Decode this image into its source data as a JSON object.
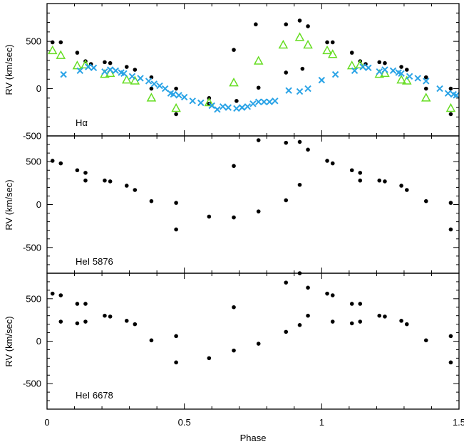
{
  "chart_data": {
    "type": "scatter",
    "xlabel": "Phase",
    "xlim": [
      0,
      1.5
    ],
    "x_ticks": [
      0,
      0.5,
      1,
      1.5
    ],
    "x_tick_labels": [
      "0",
      "0.5",
      "1",
      "1.5"
    ],
    "colors": {
      "black": "#000000",
      "green": "#66dd22",
      "blue": "#2aa3e6"
    },
    "panels": [
      {
        "label": "Hα",
        "ylabel": "RV (km/sec)",
        "ylim": [
          -500,
          900
        ],
        "y_ticks": [
          -500,
          0,
          500
        ],
        "y_tick_labels": [
          "-500",
          "0",
          "500"
        ],
        "series": [
          {
            "marker": "dot",
            "color": "#000000",
            "points": [
              [
                0.02,
                490
              ],
              [
                0.05,
                490
              ],
              [
                0.11,
                380
              ],
              [
                0.14,
                290
              ],
              [
                0.16,
                260
              ],
              [
                0.21,
                280
              ],
              [
                0.23,
                270
              ],
              [
                0.29,
                230
              ],
              [
                0.32,
                200
              ],
              [
                0.38,
                120
              ],
              [
                0.38,
                0
              ],
              [
                0.47,
                0
              ],
              [
                0.47,
                -270
              ],
              [
                0.59,
                -100
              ],
              [
                0.59,
                -160
              ],
              [
                0.68,
                410
              ],
              [
                0.69,
                -130
              ],
              [
                0.76,
                680
              ],
              [
                0.77,
                10
              ],
              [
                0.87,
                680
              ],
              [
                0.87,
                170
              ],
              [
                0.92,
                720
              ],
              [
                0.93,
                210
              ],
              [
                0.95,
                660
              ],
              [
                1.02,
                490
              ],
              [
                1.04,
                490
              ],
              [
                1.11,
                380
              ],
              [
                1.14,
                290
              ],
              [
                1.16,
                260
              ],
              [
                1.21,
                280
              ],
              [
                1.23,
                270
              ],
              [
                1.29,
                230
              ],
              [
                1.31,
                200
              ],
              [
                1.38,
                120
              ],
              [
                1.38,
                0
              ],
              [
                1.47,
                0
              ],
              [
                1.47,
                -270
              ]
            ]
          },
          {
            "marker": "triangle",
            "color": "#66dd22",
            "points": [
              [
                0.02,
                400
              ],
              [
                0.05,
                350
              ],
              [
                0.11,
                240
              ],
              [
                0.14,
                250
              ],
              [
                0.21,
                150
              ],
              [
                0.23,
                160
              ],
              [
                0.29,
                90
              ],
              [
                0.32,
                80
              ],
              [
                0.38,
                -100
              ],
              [
                0.47,
                -210
              ],
              [
                0.59,
                -150
              ],
              [
                0.68,
                60
              ],
              [
                0.77,
                290
              ],
              [
                0.86,
                460
              ],
              [
                0.92,
                540
              ],
              [
                0.95,
                460
              ],
              [
                1.02,
                400
              ],
              [
                1.04,
                360
              ],
              [
                1.11,
                240
              ],
              [
                1.14,
                250
              ],
              [
                1.21,
                150
              ],
              [
                1.23,
                160
              ],
              [
                1.29,
                90
              ],
              [
                1.31,
                80
              ],
              [
                1.38,
                -100
              ],
              [
                1.47,
                -210
              ]
            ]
          },
          {
            "marker": "cross",
            "color": "#2aa3e6",
            "points": [
              [
                0.06,
                150
              ],
              [
                0.12,
                190
              ],
              [
                0.15,
                230
              ],
              [
                0.17,
                220
              ],
              [
                0.21,
                180
              ],
              [
                0.23,
                200
              ],
              [
                0.25,
                190
              ],
              [
                0.27,
                170
              ],
              [
                0.28,
                160
              ],
              [
                0.31,
                130
              ],
              [
                0.34,
                110
              ],
              [
                0.37,
                80
              ],
              [
                0.39,
                50
              ],
              [
                0.41,
                30
              ],
              [
                0.43,
                0
              ],
              [
                0.45,
                -50
              ],
              [
                0.46,
                -60
              ],
              [
                0.48,
                -70
              ],
              [
                0.5,
                -90
              ],
              [
                0.53,
                -130
              ],
              [
                0.56,
                -150
              ],
              [
                0.6,
                -180
              ],
              [
                0.62,
                -220
              ],
              [
                0.64,
                -190
              ],
              [
                0.66,
                -200
              ],
              [
                0.69,
                -210
              ],
              [
                0.71,
                -200
              ],
              [
                0.73,
                -190
              ],
              [
                0.75,
                -160
              ],
              [
                0.77,
                -140
              ],
              [
                0.79,
                -140
              ],
              [
                0.81,
                -140
              ],
              [
                0.83,
                -130
              ],
              [
                0.88,
                -20
              ],
              [
                0.92,
                -30
              ],
              [
                0.95,
                0
              ],
              [
                1.0,
                90
              ],
              [
                1.05,
                150
              ],
              [
                1.12,
                190
              ],
              [
                1.15,
                230
              ],
              [
                1.17,
                220
              ],
              [
                1.21,
                180
              ],
              [
                1.23,
                200
              ],
              [
                1.26,
                190
              ],
              [
                1.28,
                170
              ],
              [
                1.29,
                160
              ],
              [
                1.32,
                130
              ],
              [
                1.35,
                110
              ],
              [
                1.38,
                80
              ],
              [
                1.43,
                0
              ],
              [
                1.46,
                -50
              ],
              [
                1.48,
                -60
              ],
              [
                1.49,
                -70
              ]
            ]
          }
        ]
      },
      {
        "label": "HeI 5876",
        "ylabel": "RV (km/sec)",
        "ylim": [
          -800,
          800
        ],
        "y_ticks": [
          -500,
          0,
          500
        ],
        "y_tick_labels": [
          "-500",
          "0",
          "500"
        ],
        "series": [
          {
            "marker": "dot",
            "color": "#000000",
            "points": [
              [
                0.02,
                510
              ],
              [
                0.05,
                480
              ],
              [
                0.11,
                400
              ],
              [
                0.14,
                370
              ],
              [
                0.14,
                280
              ],
              [
                0.21,
                280
              ],
              [
                0.23,
                270
              ],
              [
                0.29,
                220
              ],
              [
                0.32,
                170
              ],
              [
                0.38,
                40
              ],
              [
                0.47,
                20
              ],
              [
                0.47,
                -290
              ],
              [
                0.59,
                -140
              ],
              [
                0.68,
                450
              ],
              [
                0.68,
                -150
              ],
              [
                0.77,
                750
              ],
              [
                0.77,
                -80
              ],
              [
                0.87,
                720
              ],
              [
                0.87,
                50
              ],
              [
                0.92,
                730
              ],
              [
                0.92,
                230
              ],
              [
                0.95,
                640
              ],
              [
                1.02,
                510
              ],
              [
                1.04,
                480
              ],
              [
                1.11,
                400
              ],
              [
                1.14,
                370
              ],
              [
                1.14,
                280
              ],
              [
                1.21,
                280
              ],
              [
                1.23,
                270
              ],
              [
                1.29,
                220
              ],
              [
                1.31,
                170
              ],
              [
                1.38,
                40
              ],
              [
                1.47,
                20
              ],
              [
                1.47,
                -290
              ]
            ]
          }
        ]
      },
      {
        "label": "HeI 6678",
        "ylabel": "RV (km/sec)",
        "ylim": [
          -800,
          800
        ],
        "y_ticks": [
          -500,
          0,
          500
        ],
        "y_tick_labels": [
          "-500",
          "0",
          "500"
        ],
        "series": [
          {
            "marker": "dot",
            "color": "#000000",
            "points": [
              [
                0.02,
                560
              ],
              [
                0.05,
                540
              ],
              [
                0.05,
                230
              ],
              [
                0.11,
                440
              ],
              [
                0.11,
                210
              ],
              [
                0.14,
                440
              ],
              [
                0.14,
                230
              ],
              [
                0.21,
                300
              ],
              [
                0.23,
                290
              ],
              [
                0.29,
                240
              ],
              [
                0.32,
                200
              ],
              [
                0.38,
                10
              ],
              [
                0.47,
                60
              ],
              [
                0.47,
                -250
              ],
              [
                0.59,
                -200
              ],
              [
                0.68,
                400
              ],
              [
                0.68,
                -110
              ],
              [
                0.77,
                -30
              ],
              [
                0.87,
                690
              ],
              [
                0.87,
                110
              ],
              [
                0.92,
                800
              ],
              [
                0.92,
                190
              ],
              [
                0.95,
                630
              ],
              [
                0.95,
                300
              ],
              [
                1.02,
                560
              ],
              [
                1.04,
                540
              ],
              [
                1.04,
                230
              ],
              [
                1.11,
                440
              ],
              [
                1.11,
                210
              ],
              [
                1.14,
                440
              ],
              [
                1.14,
                230
              ],
              [
                1.21,
                300
              ],
              [
                1.23,
                290
              ],
              [
                1.29,
                240
              ],
              [
                1.31,
                200
              ],
              [
                1.38,
                10
              ],
              [
                1.47,
                60
              ],
              [
                1.47,
                -250
              ]
            ]
          }
        ]
      }
    ]
  }
}
